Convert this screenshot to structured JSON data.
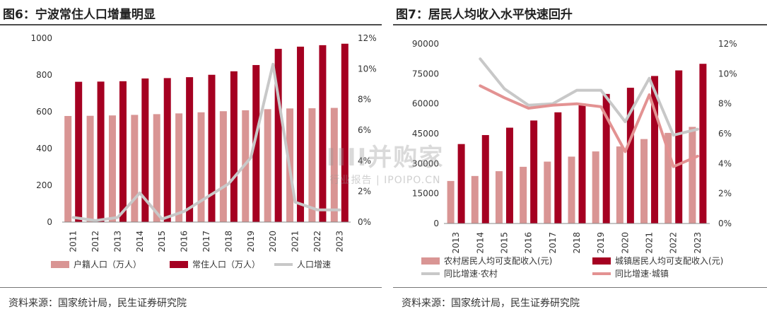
{
  "watermark": {
    "main": "IIII并购家",
    "sub": "行业报告 | IPOIPO.CN"
  },
  "charts": [
    {
      "title": "图6：宁波常住人口增量明显",
      "source": "资料来源：国家统计局，民生证券研究院",
      "colors": {
        "bar_a": "#d99594",
        "bar_b": "#a50021",
        "line_a": "#c8c8c8"
      },
      "chart_data": {
        "type": "bar",
        "categories": [
          "2011",
          "2012",
          "2013",
          "2014",
          "2015",
          "2016",
          "2017",
          "2018",
          "2019",
          "2020",
          "2021",
          "2022",
          "2023"
        ],
        "series": [
          {
            "name": "户籍人口（万人）",
            "type": "bar",
            "axis": "left",
            "values": [
              577,
              578,
              580,
              583,
              587,
              591,
              597,
              603,
              608,
              614,
              618,
              619,
              621
            ]
          },
          {
            "name": "常住人口（万人）",
            "type": "bar",
            "axis": "left",
            "values": [
              763,
              764,
              766,
              781,
              783,
              788,
              801,
              820,
              854,
              942,
              954,
              962,
              970
            ]
          },
          {
            "name": "人口增速",
            "type": "line",
            "axis": "right",
            "values": [
              0.3,
              0.1,
              0.3,
              1.9,
              0.2,
              0.7,
              1.6,
              2.5,
              4.2,
              10.3,
              1.3,
              0.8,
              0.8
            ]
          }
        ],
        "left_axis": {
          "min": 0,
          "max": 1000,
          "ticks": [
            "0",
            "200",
            "400",
            "600",
            "800",
            "1000"
          ]
        },
        "right_axis": {
          "min": 0,
          "max": 12,
          "ticks": [
            "0%",
            "2%",
            "4%",
            "6%",
            "8%",
            "10%",
            "12%"
          ]
        }
      }
    },
    {
      "title": "图7：居民人均收入水平快速回升",
      "source": "资料来源：国家统计局，民生证券研究院",
      "colors": {
        "bar_a": "#d99594",
        "bar_b": "#a50021",
        "line_a": "#c8c8c8",
        "line_b": "#e39292"
      },
      "chart_data": {
        "type": "bar",
        "categories": [
          "2013",
          "2014",
          "2015",
          "2016",
          "2017",
          "2018",
          "2019",
          "2020",
          "2021",
          "2022",
          "2023"
        ],
        "series": [
          {
            "name": "农村居民人均可支配收入(元)",
            "type": "bar",
            "axis": "left",
            "values": [
              21300,
              23800,
              26200,
              28400,
              31000,
              33500,
              36100,
              38600,
              42300,
              45400,
              48400
            ]
          },
          {
            "name": "城镇居民人均可支配收入(元)",
            "type": "bar",
            "axis": "left",
            "values": [
              39800,
              44300,
              48000,
              51600,
              55700,
              60100,
              64900,
              68000,
              73900,
              76700,
              80000
            ]
          },
          {
            "name": "同比增速·农村",
            "type": "line",
            "axis": "right",
            "values": [
              null,
              11.0,
              9.0,
              7.9,
              8.0,
              8.9,
              8.9,
              6.8,
              9.7,
              5.9,
              6.3
            ]
          },
          {
            "name": "同比增速·城镇",
            "type": "line",
            "axis": "right",
            "values": [
              null,
              9.2,
              8.4,
              7.7,
              7.9,
              8.0,
              7.8,
              4.8,
              8.6,
              3.8,
              4.5
            ]
          }
        ],
        "left_axis": {
          "min": 0,
          "max": 90000,
          "ticks": [
            "0",
            "15000",
            "30000",
            "45000",
            "60000",
            "75000",
            "90000"
          ]
        },
        "right_axis": {
          "min": 0,
          "max": 12,
          "ticks": [
            "0%",
            "2%",
            "4%",
            "6%",
            "8%",
            "10%",
            "12%"
          ]
        }
      }
    }
  ]
}
